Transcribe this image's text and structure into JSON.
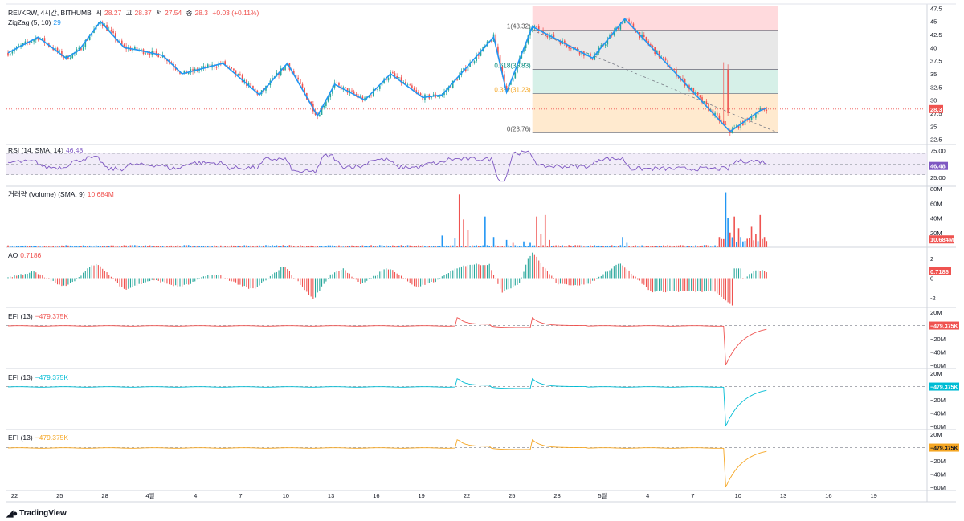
{
  "header": {
    "symbol": "REI/KRW, 4시간, BITHUMB",
    "open_label": "시",
    "open": "28.27",
    "high_label": "고",
    "high": "28.37",
    "low_label": "저",
    "low": "27.54",
    "close_label": "종",
    "close": "28.3",
    "change": "+0.03 (+0.11%)"
  },
  "legends": {
    "zigzag": {
      "label": "ZigZag (5, 10)",
      "value": "29"
    },
    "rsi": {
      "label": "RSI (14, SMA, 14)",
      "value": "46.48"
    },
    "volume": {
      "label": "거래량 (Volume) (SMA, 9)",
      "value": "10.684M"
    },
    "ao": {
      "label": "AO",
      "value": "0.7186"
    },
    "efi1": {
      "label": "EFI (13)",
      "value": "−479.375K"
    },
    "efi2": {
      "label": "EFI (13)",
      "value": "−479.375K"
    },
    "efi3": {
      "label": "EFI (13)",
      "value": "−479.375K"
    }
  },
  "branding": {
    "logo": "TradingView"
  },
  "colors": {
    "up": "#26a69a",
    "down": "#ef5350",
    "zigzag": "#2196f3",
    "rsi": "#7e57c2",
    "efi1": "#ef5350",
    "efi2": "#00bcd4",
    "efi3": "#f5a623",
    "price_line": "#ef5350"
  },
  "chart_data": [
    {
      "type": "candlestick",
      "title": "REI/KRW, 4시간, BITHUMB",
      "x_ticks": [
        "22",
        "25",
        "28",
        "4월",
        "4",
        "7",
        "10",
        "13",
        "16",
        "19",
        "22",
        "25",
        "28",
        "5월",
        "4",
        "7",
        "10",
        "13",
        "16",
        "19"
      ],
      "y_ticks": [
        "47.5",
        "45",
        "42.5",
        "40",
        "37.5",
        "35",
        "32.5",
        "30",
        "27.5",
        "25",
        "22.5"
      ],
      "ylim": [
        22,
        48
      ],
      "last_price": "28.3",
      "zigzag_points": [
        [
          0,
          39
        ],
        [
          14,
          42
        ],
        [
          27,
          38
        ],
        [
          33,
          39.5
        ],
        [
          43,
          45
        ],
        [
          54,
          40
        ],
        [
          61,
          39.5
        ],
        [
          72,
          38.5
        ],
        [
          81,
          35
        ],
        [
          100,
          37
        ],
        [
          117,
          31
        ],
        [
          130,
          37
        ],
        [
          144,
          27
        ],
        [
          152,
          33
        ],
        [
          166,
          30
        ],
        [
          178,
          35
        ],
        [
          193,
          30.5
        ],
        [
          202,
          31
        ],
        [
          226,
          42
        ],
        [
          232,
          31.5
        ],
        [
          244,
          44
        ],
        [
          272,
          38
        ],
        [
          287,
          45.5
        ],
        [
          336,
          24
        ],
        [
          350,
          28
        ],
        [
          353,
          28.5
        ]
      ],
      "fibonacci": {
        "levels": [
          {
            "label": "1(43.32)",
            "value": 43.32
          },
          {
            "label": "0.618(35.83)",
            "value": 35.83
          },
          {
            "label": "0.382(31.23)",
            "value": 31.23
          },
          {
            "label": "0(23.76)",
            "value": 23.76
          }
        ],
        "bands": [
          {
            "from": 43.32,
            "to": 48,
            "color": "#ffcdd2"
          },
          {
            "from": 35.83,
            "to": 43.32,
            "color": "#e0e0e0"
          },
          {
            "from": 31.23,
            "to": 35.83,
            "color": "#c8ebe0"
          },
          {
            "from": 23.76,
            "to": 31.23,
            "color": "#ffe3bf"
          }
        ]
      }
    },
    {
      "type": "line",
      "name": "RSI (14, SMA, 14)",
      "y_ticks": [
        "75.00",
        "50.00",
        "25.00"
      ],
      "ylim": [
        10,
        85
      ],
      "bands": [
        30,
        70
      ],
      "midline": 50,
      "last_value": "46.48"
    },
    {
      "type": "bar",
      "name": "거래량 (Volume) (SMA, 9)",
      "y_ticks": [
        "80M",
        "60M",
        "40M",
        "20M"
      ],
      "ylim": [
        0,
        80
      ],
      "spikes": [
        [
          202,
          16,
          "up"
        ],
        [
          208,
          12,
          "up"
        ],
        [
          210,
          72,
          "down"
        ],
        [
          212,
          38,
          "down"
        ],
        [
          214,
          24,
          "down"
        ],
        [
          222,
          42,
          "up"
        ],
        [
          226,
          14,
          "up"
        ],
        [
          232,
          10,
          "up"
        ],
        [
          235,
          6,
          "down"
        ],
        [
          240,
          8,
          "up"
        ],
        [
          243,
          6,
          "up"
        ],
        [
          246,
          42,
          "down"
        ],
        [
          248,
          18,
          "down"
        ],
        [
          250,
          44,
          "down"
        ],
        [
          252,
          10,
          "down"
        ],
        [
          286,
          14,
          "up"
        ],
        [
          288,
          6,
          "up"
        ],
        [
          334,
          75,
          "up"
        ],
        [
          335,
          40,
          "up"
        ],
        [
          336,
          20,
          "down"
        ],
        [
          338,
          42,
          "down"
        ],
        [
          340,
          26,
          "down"
        ],
        [
          342,
          8,
          "up"
        ],
        [
          346,
          28,
          "down"
        ],
        [
          348,
          18,
          "down"
        ],
        [
          350,
          44,
          "down"
        ],
        [
          352,
          14,
          "down"
        ],
        [
          354,
          8,
          "down"
        ],
        [
          356,
          10,
          "down"
        ]
      ],
      "last_value": "10.684M"
    },
    {
      "type": "bar",
      "name": "AO",
      "y_ticks": [
        "2",
        "0",
        "-2"
      ],
      "ylim": [
        -3,
        3
      ],
      "last_value": "0.7186"
    },
    {
      "type": "line",
      "name": "EFI (13)",
      "y_ticks": [
        "20M",
        "−20M",
        "−40M",
        "−60M"
      ],
      "ylim": [
        -65,
        25
      ],
      "zero_line": 0,
      "last_value": "−479.375K"
    },
    {
      "type": "line",
      "name": "EFI (13)",
      "y_ticks": [
        "20M",
        "−20M",
        "−40M",
        "−60M"
      ],
      "ylim": [
        -65,
        25
      ],
      "zero_line": 0,
      "last_value": "−479.375K"
    },
    {
      "type": "line",
      "name": "EFI (13)",
      "y_ticks": [
        "20M",
        "−20M",
        "−40M",
        "−60M"
      ],
      "ylim": [
        -65,
        25
      ],
      "zero_line": 0,
      "last_value": "−479.375K"
    }
  ]
}
